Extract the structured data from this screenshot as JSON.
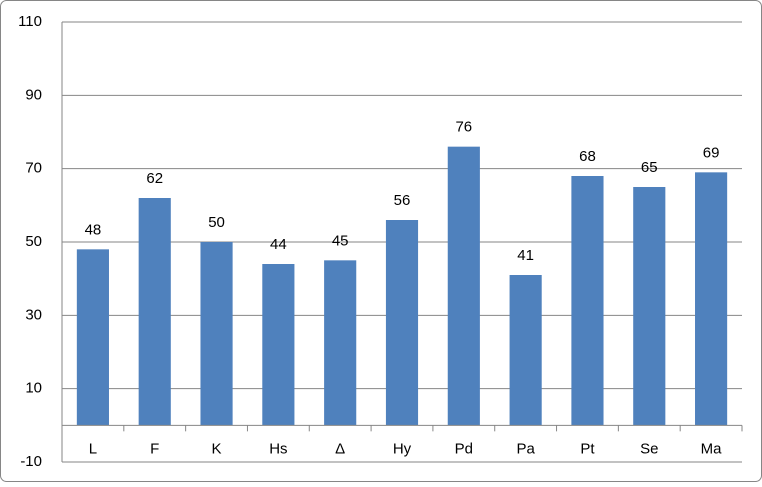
{
  "chart_data": {
    "type": "bar",
    "categories": [
      "L",
      "F",
      "K",
      "Hs",
      "Δ",
      "Hy",
      "Pd",
      "Pa",
      "Pt",
      "Se",
      "Ma"
    ],
    "values": [
      48,
      62,
      50,
      44,
      45,
      56,
      76,
      41,
      68,
      65,
      69
    ],
    "color": "#4f81bd",
    "ylim": [
      -10,
      110
    ],
    "yticks": [
      -10,
      10,
      30,
      50,
      70,
      90,
      110
    ],
    "grid": true
  }
}
